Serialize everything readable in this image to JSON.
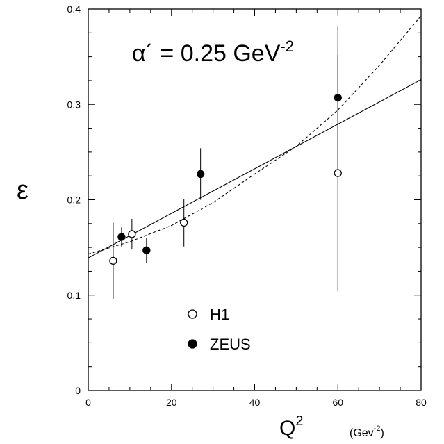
{
  "chart_data": {
    "type": "scatter",
    "title": "",
    "annotation": {
      "base": "α´ = 0.25 GeV",
      "sup": "-2"
    },
    "xlabel": {
      "base": "Q",
      "sup": "2",
      "unit_open": "(Gev",
      "unit_sup": "-2",
      "unit_close": ")"
    },
    "ylabel": "ε",
    "xlim": [
      0,
      80
    ],
    "ylim": [
      0,
      0.4
    ],
    "x_ticks": [
      0,
      20,
      40,
      60,
      80
    ],
    "x_tick_labels": [
      "0",
      "20",
      "40",
      "60",
      "80"
    ],
    "y_ticks": [
      0,
      0.1,
      0.2,
      0.3,
      0.4
    ],
    "y_tick_labels": [
      "0",
      "0.1",
      "0.2",
      "0.3",
      "0.4"
    ],
    "grid": false,
    "legend_position": "lower-center",
    "series": [
      {
        "name": "H1",
        "marker": "open-circle",
        "points": [
          {
            "x": 6,
            "y": 0.136,
            "err_low": 0.04,
            "err_high": 0.04
          },
          {
            "x": 10.5,
            "y": 0.164,
            "err_low": 0.016,
            "err_high": 0.016
          },
          {
            "x": 23,
            "y": 0.176,
            "err_low": 0.025,
            "err_high": 0.025
          },
          {
            "x": 60,
            "y": 0.228,
            "err_low": 0.124,
            "err_high": 0.124
          }
        ]
      },
      {
        "name": "ZEUS",
        "marker": "filled-circle",
        "points": [
          {
            "x": 8,
            "y": 0.161,
            "err_low": 0.01,
            "err_high": 0.01
          },
          {
            "x": 14,
            "y": 0.147,
            "err_low": 0.013,
            "err_high": 0.013
          },
          {
            "x": 27,
            "y": 0.227,
            "err_low": 0.027,
            "err_high": 0.027
          },
          {
            "x": 60,
            "y": 0.307,
            "err_low": 0.075,
            "err_high": 0.075
          }
        ]
      }
    ],
    "fits": [
      {
        "style": "solid",
        "x": [
          0,
          80
        ],
        "y": [
          0.139,
          0.326
        ]
      },
      {
        "style": "dashed",
        "x": [
          0,
          10,
          20,
          30,
          40,
          50,
          60,
          70,
          80
        ],
        "y": [
          0.143,
          0.156,
          0.173,
          0.197,
          0.227,
          0.256,
          0.294,
          0.341,
          0.393
        ]
      }
    ]
  }
}
